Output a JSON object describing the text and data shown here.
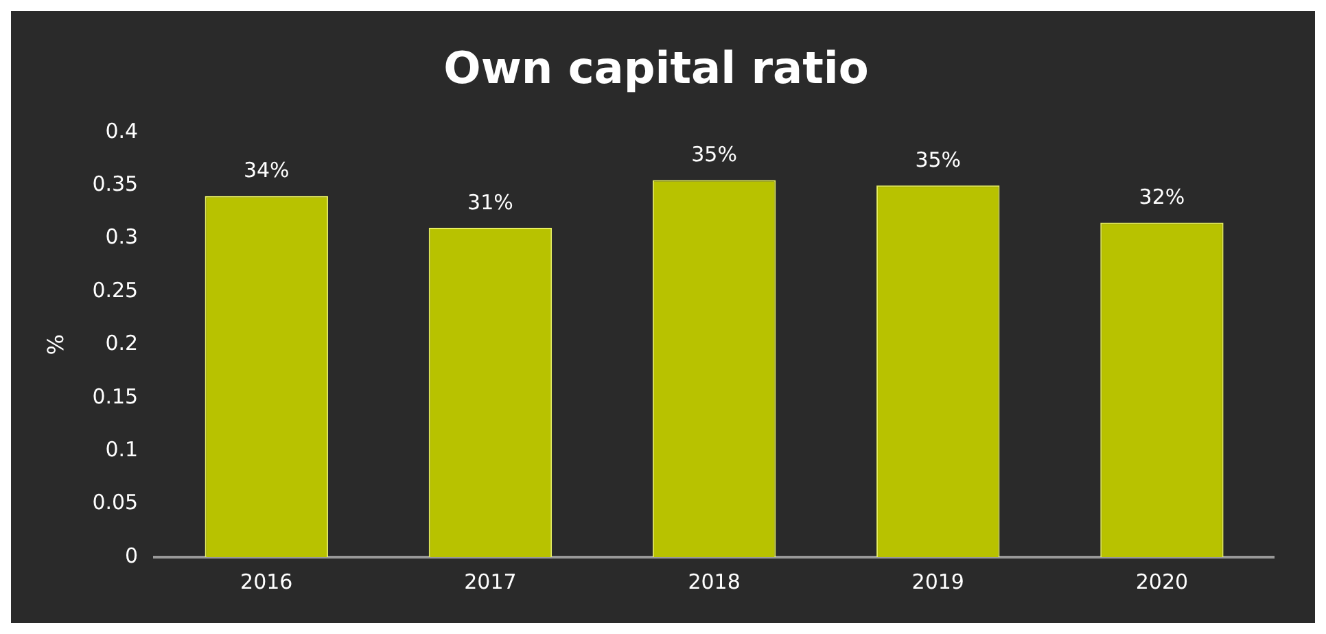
{
  "chart_data": {
    "type": "bar",
    "title": "Own capital ratio",
    "ylabel": "%",
    "categories": [
      "2016",
      "2017",
      "2018",
      "2019",
      "2020"
    ],
    "values": [
      0.34,
      0.31,
      0.355,
      0.35,
      0.315
    ],
    "value_labels": [
      "34%",
      "31%",
      "35%",
      "35%",
      "32%"
    ],
    "color": "#b8c200",
    "ylim": [
      0,
      0.4
    ],
    "yticks": [
      0,
      0.05,
      0.1,
      0.15,
      0.2,
      0.25,
      0.3,
      0.35,
      0.4
    ],
    "grid": false,
    "legend": false
  }
}
